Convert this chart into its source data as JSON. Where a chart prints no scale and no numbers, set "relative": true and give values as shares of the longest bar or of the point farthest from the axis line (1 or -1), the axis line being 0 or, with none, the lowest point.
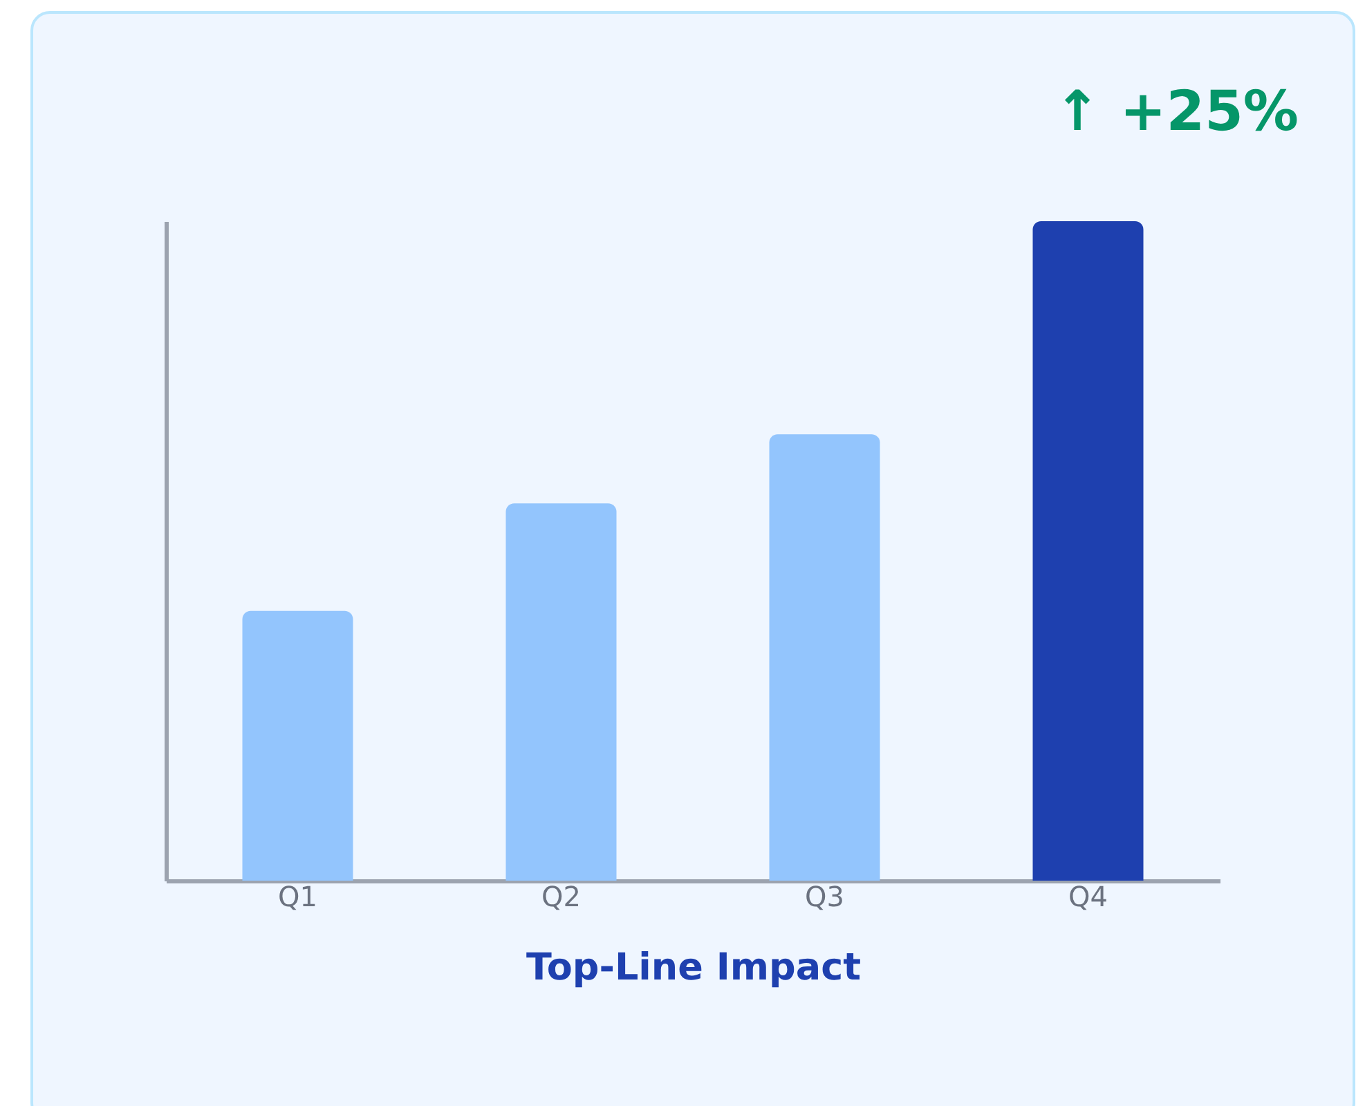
{
  "chart_data": {
    "type": "bar",
    "xlabel": "Top-Line Impact",
    "annotations": [
      "↑ +25%"
    ],
    "categories": [
      "Q1",
      "Q2",
      "Q3",
      "Q4"
    ],
    "relative": true,
    "values": [
      0.409,
      0.572,
      0.677,
      1
    ],
    "colors": [
      "#93c5fd",
      "#93c5fd",
      "#93c5fd",
      "#1e40af"
    ],
    "grid": false
  }
}
